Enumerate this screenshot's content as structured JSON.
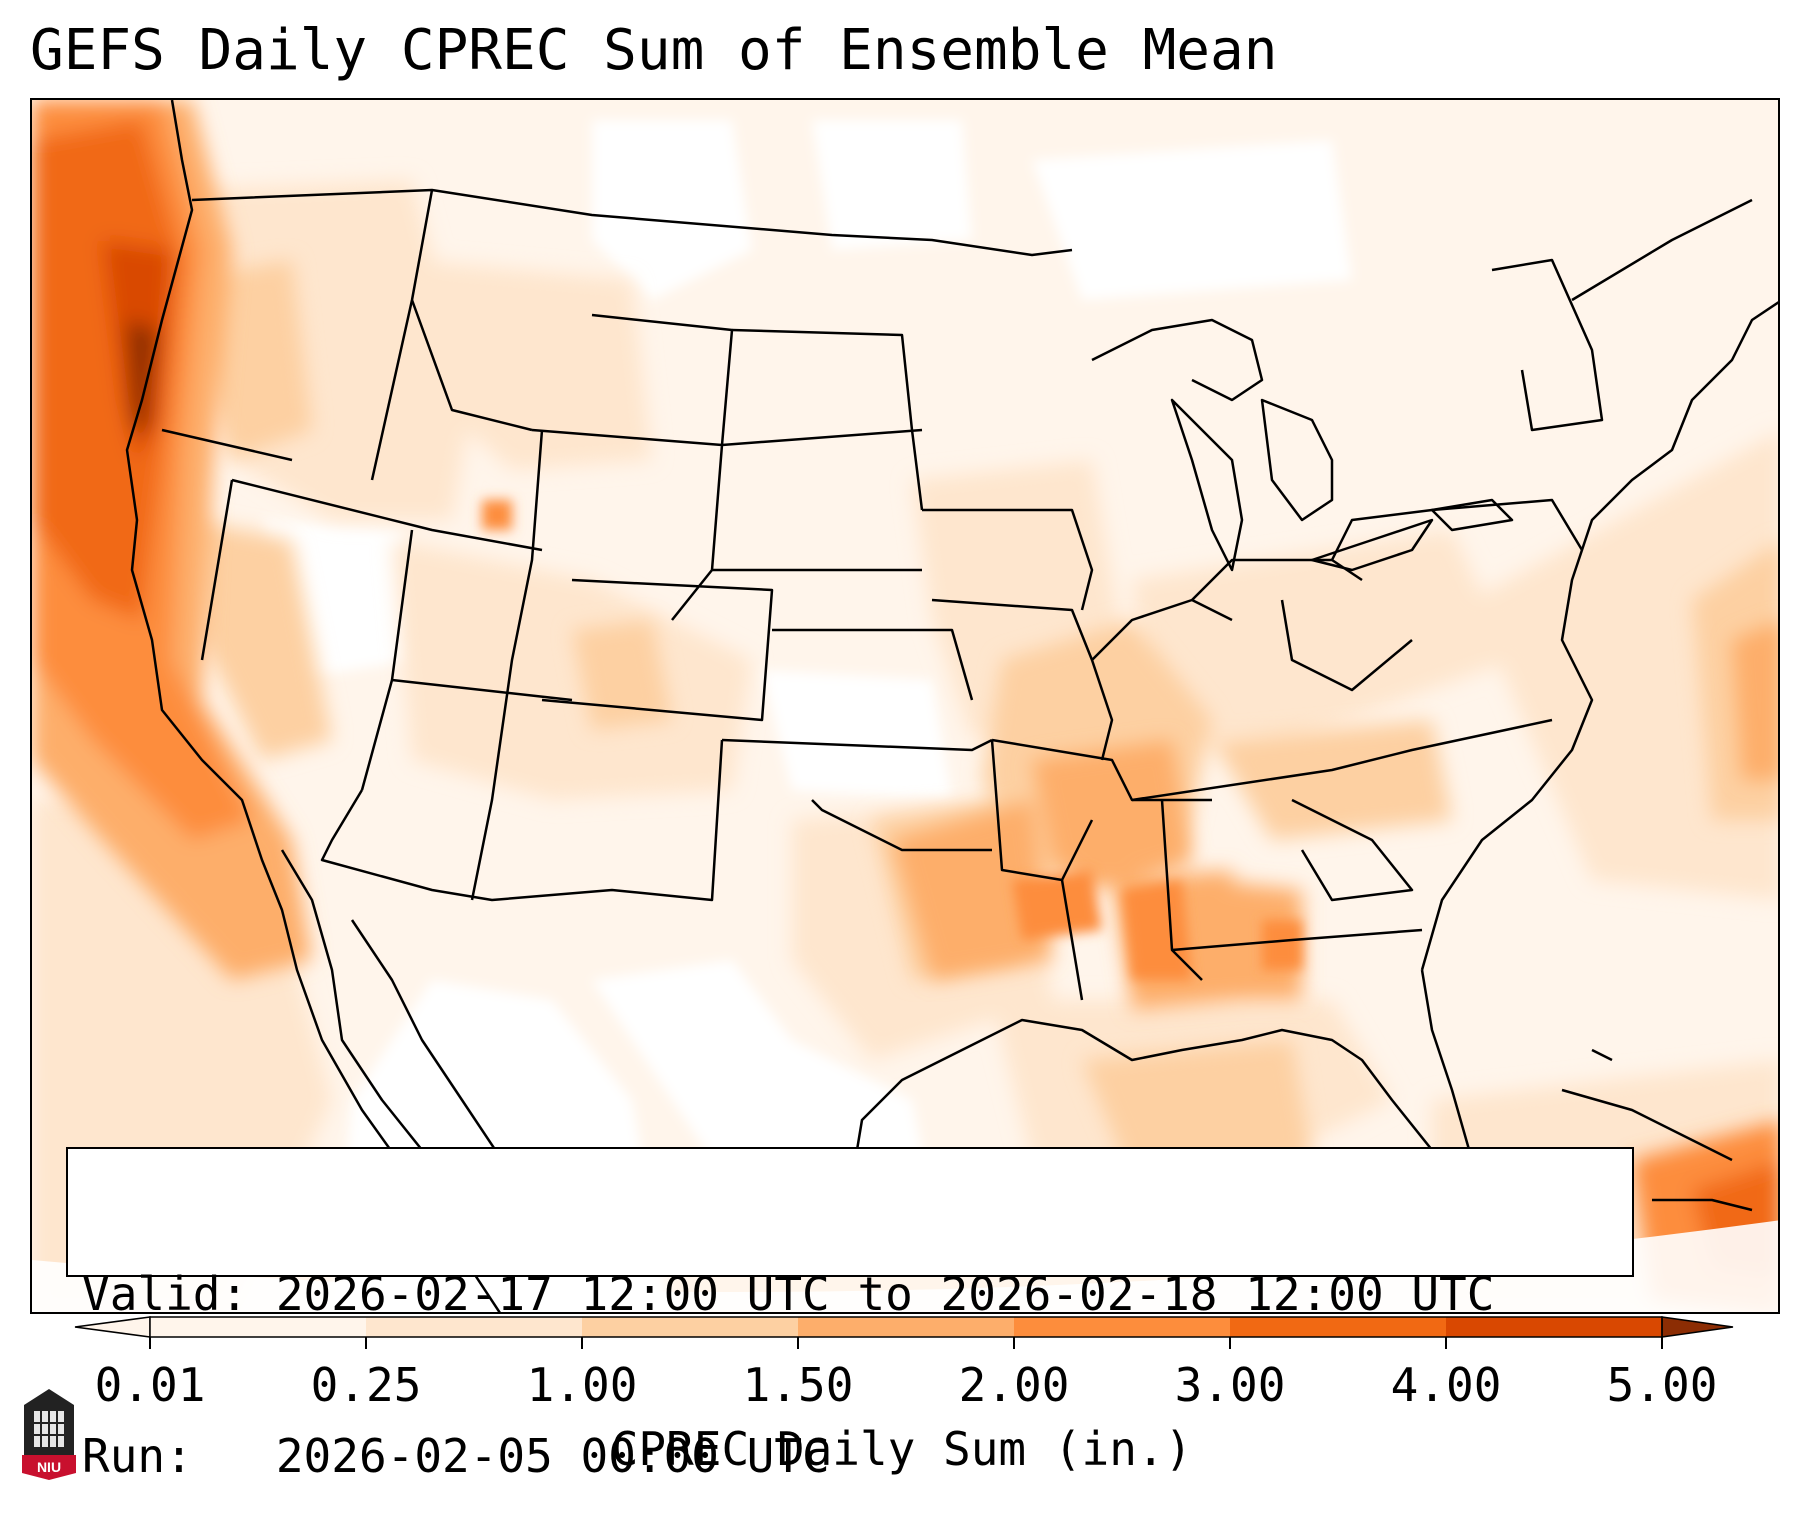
{
  "title": "GEFS Daily CPREC Sum of Ensemble Mean",
  "info": {
    "valid_line": "Valid: 2026-02-17 12:00 UTC to 2026-02-18 12:00 UTC",
    "run_line": "Run:   2026-02-05 00:00 UTC"
  },
  "colorbar": {
    "label": "CPREC Daily Sum (in.)",
    "ticks": [
      "0.01",
      "0.25",
      "1.00",
      "1.50",
      "2.00",
      "3.00",
      "4.00",
      "5.00"
    ],
    "colors": [
      "#fff5eb",
      "#fee6ce",
      "#fdd0a2",
      "#fdae6b",
      "#fd8d3c",
      "#f16913",
      "#d94801",
      "#8c2d04"
    ]
  },
  "logo": {
    "text": "NIU",
    "icon": "niu-tower-logo-icon"
  },
  "map": {
    "region": "Contiguous United States",
    "field": "GEFS ensemble mean daily convective precipitation"
  }
}
